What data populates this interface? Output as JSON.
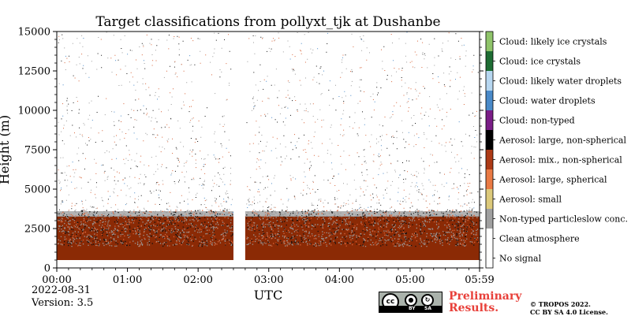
{
  "chart_data": {
    "type": "heatmap",
    "title": "Target classifications from pollyxt_tjk at Dushanbe",
    "xlabel": "UTC",
    "ylabel": "Height (m)",
    "x_ticks": [
      "00:00",
      "01:00",
      "02:00",
      "03:00",
      "04:00",
      "05:00",
      "05:59"
    ],
    "x_tick_minutes": [
      0,
      60,
      120,
      180,
      240,
      300,
      359
    ],
    "xlim_minutes": [
      0,
      359
    ],
    "y_ticks": [
      0,
      2500,
      5000,
      7500,
      10000,
      12500,
      15000
    ],
    "ylim": [
      0,
      15000
    ],
    "no_data_gap_minutes": [
      150,
      160
    ],
    "classes": [
      {
        "label": "No signal",
        "color": "#ffffff"
      },
      {
        "label": "Clean atmosphere",
        "color": "#ffffff"
      },
      {
        "label": "Non-typed particleslow conc.",
        "color": "#a0a0a0"
      },
      {
        "label": "Aerosol: small",
        "color": "#dcc97a"
      },
      {
        "label": "Aerosol: large, spherical",
        "color": "#ea7a44"
      },
      {
        "label": "Aerosol: mix., non-spherical",
        "color": "#ad3a16"
      },
      {
        "label": "Aerosol: large, non-spherical",
        "color": "#000000"
      },
      {
        "label": "Cloud: non-typed",
        "color": "#7a1d87"
      },
      {
        "label": "Cloud: water droplets",
        "color": "#4a8ac9"
      },
      {
        "label": "Cloud: likely water droplets",
        "color": "#b7d7f1"
      },
      {
        "label": "Cloud: ice crystals",
        "color": "#1e6d34"
      },
      {
        "label": "Cloud: likely ice crystals",
        "color": "#8fc46a"
      }
    ],
    "layers": {
      "dense_aerosol_base_m": 500,
      "dense_aerosol_top_m": 3300,
      "sparse_particles_up_to_m": 15000
    }
  },
  "footer": {
    "date": "2022-08-31",
    "version": "Version: 3.5",
    "preliminary_line1": "Preliminary",
    "preliminary_line2": "Results.",
    "copyright_line1": "© TROPOS 2022.",
    "copyright_line2": "CC BY SA 4.0 License.",
    "cc_by": "BY",
    "cc_sa": "SA",
    "cc_mark": "cc"
  }
}
